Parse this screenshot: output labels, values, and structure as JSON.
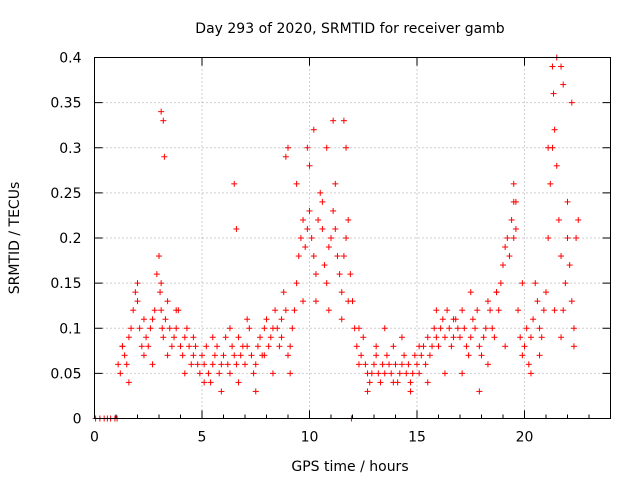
{
  "chart_data": {
    "type": "scatter",
    "title": "Day 293 of 2020, SRMTID for receiver gamb",
    "xlabel": "GPS time / hours",
    "ylabel": "SRMTID / TECUs",
    "xlim": [
      0,
      24
    ],
    "ylim": [
      0,
      0.4
    ],
    "x_ticks": [
      0,
      5,
      10,
      15,
      20
    ],
    "x_tick_labels": [
      "0",
      "5",
      "10",
      "15",
      "20"
    ],
    "y_ticks": [
      0,
      0.05,
      0.1,
      0.15,
      0.2,
      0.25,
      0.3,
      0.35,
      0.4
    ],
    "y_tick_labels": [
      "0",
      "0.05",
      "0.1",
      "0.15",
      "0.2",
      "0.25",
      "0.3",
      "0.35",
      "0.4"
    ],
    "grid": true,
    "marker": "+",
    "series": [
      {
        "name": "SRMTID",
        "color": "#ff0000",
        "x": [
          0.05,
          0.25,
          0.45,
          0.6,
          0.75,
          0.95,
          1.05,
          11.95,
          1.1,
          1.2,
          1.3,
          1.4,
          1.5,
          1.6,
          1.7,
          1.8,
          1.9,
          2.0,
          2.1,
          2.2,
          2.3,
          2.4,
          2.5,
          2.6,
          2.7,
          2.8,
          2.9,
          3.0,
          3.05,
          3.1,
          3.15,
          3.2,
          3.3,
          3.4,
          3.5,
          3.6,
          3.7,
          3.8,
          3.9,
          4.0,
          4.1,
          4.2,
          4.3,
          4.4,
          4.5,
          4.6,
          4.7,
          4.8,
          4.9,
          5.0,
          5.1,
          5.2,
          5.3,
          5.4,
          5.5,
          5.6,
          5.7,
          5.8,
          5.9,
          6.0,
          6.1,
          6.2,
          6.3,
          6.4,
          6.5,
          6.6,
          6.7,
          6.8,
          6.9,
          7.0,
          7.1,
          7.2,
          7.3,
          7.4,
          7.5,
          7.6,
          7.7,
          7.8,
          7.9,
          8.0,
          8.1,
          8.2,
          8.3,
          8.4,
          8.5,
          8.6,
          8.7,
          8.8,
          8.9,
          9.0,
          9.1,
          9.2,
          9.3,
          9.4,
          9.5,
          9.6,
          9.7,
          9.8,
          9.9,
          10.0,
          10.1,
          10.2,
          10.3,
          10.4,
          10.5,
          10.6,
          10.7,
          10.8,
          10.9,
          11.0,
          11.1,
          11.2,
          11.3,
          11.4,
          11.5,
          11.6,
          11.7,
          11.8,
          11.9,
          12.0,
          12.1,
          12.2,
          12.3,
          12.4,
          12.5,
          12.6,
          12.7,
          12.8,
          12.9,
          13.0,
          13.1,
          13.2,
          13.3,
          13.4,
          13.5,
          13.6,
          13.7,
          13.8,
          13.9,
          14.0,
          14.1,
          14.2,
          14.3,
          14.4,
          14.5,
          14.6,
          14.7,
          14.8,
          14.9,
          15.0,
          15.1,
          15.2,
          15.3,
          15.4,
          15.5,
          15.6,
          15.7,
          15.8,
          15.9,
          16.0,
          16.1,
          16.2,
          16.3,
          16.4,
          16.5,
          16.6,
          16.7,
          16.8,
          16.9,
          17.0,
          17.1,
          17.2,
          17.3,
          17.4,
          17.5,
          17.6,
          17.7,
          17.8,
          17.9,
          18.0,
          18.1,
          18.2,
          18.3,
          18.4,
          18.5,
          18.6,
          18.7,
          18.8,
          18.9,
          19.0,
          19.1,
          19.2,
          19.3,
          19.4,
          19.5,
          19.6,
          19.7,
          19.8,
          19.9,
          20.0,
          20.1,
          20.2,
          20.3,
          20.4,
          20.5,
          20.6,
          20.7,
          20.8,
          20.9,
          21.0,
          21.1,
          21.2,
          21.3,
          21.4,
          21.5,
          21.6,
          21.7,
          21.8,
          21.9,
          22.0,
          22.1,
          22.2,
          22.3,
          22.4,
          22.5,
          1.3,
          1.6,
          2.0,
          2.3,
          2.7,
          3.1,
          3.4,
          3.8,
          4.2,
          4.6,
          5.1,
          5.5,
          5.9,
          6.3,
          6.7,
          7.1,
          7.5,
          7.9,
          8.3,
          8.7,
          9.1,
          9.4,
          9.7,
          10.0,
          10.3,
          10.6,
          10.9,
          11.2,
          11.5,
          11.8,
          12.3,
          12.7,
          13.1,
          13.5,
          13.9,
          14.3,
          14.7,
          15.1,
          15.5,
          15.9,
          16.3,
          16.7,
          17.1,
          17.5,
          17.9,
          18.3,
          18.7,
          19.1,
          19.5,
          19.9,
          20.3,
          20.7,
          21.1,
          21.4,
          21.7,
          22.0,
          22.3,
          3.1,
          3.2,
          3.25,
          6.5,
          6.6,
          9.9,
          10.2,
          10.8,
          11.1,
          11.6,
          11.7,
          21.3,
          21.35,
          21.5,
          21.7,
          21.8,
          22.2,
          19.5,
          19.6,
          8.9,
          9.0
        ],
        "y": [
          0.0,
          0.0,
          0.0,
          0.0,
          0.0,
          0.0,
          0.0,
          0.0,
          0.06,
          0.05,
          0.08,
          0.07,
          0.06,
          0.09,
          0.1,
          0.12,
          0.14,
          0.15,
          0.1,
          0.08,
          0.07,
          0.09,
          0.08,
          0.1,
          0.11,
          0.12,
          0.16,
          0.18,
          0.14,
          0.12,
          0.1,
          0.09,
          0.11,
          0.13,
          0.1,
          0.08,
          0.09,
          0.1,
          0.12,
          0.08,
          0.07,
          0.09,
          0.1,
          0.08,
          0.06,
          0.07,
          0.08,
          0.06,
          0.05,
          0.07,
          0.06,
          0.08,
          0.05,
          0.04,
          0.06,
          0.07,
          0.08,
          0.05,
          0.06,
          0.07,
          0.09,
          0.06,
          0.05,
          0.08,
          0.07,
          0.06,
          0.09,
          0.07,
          0.08,
          0.06,
          0.08,
          0.1,
          0.07,
          0.05,
          0.06,
          0.08,
          0.09,
          0.07,
          0.1,
          0.11,
          0.08,
          0.09,
          0.1,
          0.12,
          0.1,
          0.08,
          0.11,
          0.14,
          0.12,
          0.07,
          0.08,
          0.1,
          0.12,
          0.15,
          0.18,
          0.2,
          0.22,
          0.19,
          0.21,
          0.23,
          0.2,
          0.18,
          0.16,
          0.22,
          0.25,
          0.21,
          0.17,
          0.15,
          0.19,
          0.2,
          0.23,
          0.21,
          0.18,
          0.16,
          0.14,
          0.18,
          0.2,
          0.22,
          0.16,
          0.13,
          0.1,
          0.08,
          0.06,
          0.07,
          0.09,
          0.06,
          0.05,
          0.04,
          0.05,
          0.06,
          0.07,
          0.05,
          0.04,
          0.06,
          0.05,
          0.07,
          0.06,
          0.05,
          0.08,
          0.06,
          0.04,
          0.05,
          0.06,
          0.07,
          0.05,
          0.06,
          0.04,
          0.05,
          0.07,
          0.06,
          0.05,
          0.07,
          0.08,
          0.06,
          0.09,
          0.07,
          0.08,
          0.1,
          0.09,
          0.08,
          0.1,
          0.11,
          0.09,
          0.12,
          0.1,
          0.08,
          0.09,
          0.11,
          0.1,
          0.09,
          0.12,
          0.1,
          0.08,
          0.07,
          0.09,
          0.11,
          0.1,
          0.12,
          0.08,
          0.07,
          0.09,
          0.1,
          0.13,
          0.12,
          0.1,
          0.09,
          0.14,
          0.12,
          0.15,
          0.17,
          0.19,
          0.2,
          0.18,
          0.22,
          0.24,
          0.21,
          0.12,
          0.09,
          0.07,
          0.08,
          0.1,
          0.06,
          0.09,
          0.11,
          0.15,
          0.13,
          0.1,
          0.09,
          0.12,
          0.14,
          0.2,
          0.26,
          0.3,
          0.32,
          0.28,
          0.22,
          0.18,
          0.12,
          0.15,
          0.2,
          0.17,
          0.13,
          0.1,
          0.2,
          0.22,
          0.08,
          0.04,
          0.13,
          0.11,
          0.06,
          0.15,
          0.07,
          0.12,
          0.05,
          0.09,
          0.04,
          0.09,
          0.03,
          0.1,
          0.04,
          0.11,
          0.03,
          0.07,
          0.05,
          0.09,
          0.05,
          0.26,
          0.13,
          0.28,
          0.13,
          0.24,
          0.12,
          0.26,
          0.11,
          0.13,
          0.1,
          0.03,
          0.08,
          0.1,
          0.04,
          0.09,
          0.03,
          0.08,
          0.04,
          0.12,
          0.05,
          0.11,
          0.05,
          0.14,
          0.03,
          0.06,
          0.14,
          0.08,
          0.2,
          0.15,
          0.05,
          0.07,
          0.3,
          0.12,
          0.09,
          0.24,
          0.08,
          0.34,
          0.33,
          0.29,
          0.26,
          0.21,
          0.3,
          0.32,
          0.3,
          0.33,
          0.33,
          0.3,
          0.39,
          0.36,
          0.4,
          0.39,
          0.37,
          0.35,
          0.26,
          0.24,
          0.29,
          0.3
        ]
      }
    ]
  }
}
